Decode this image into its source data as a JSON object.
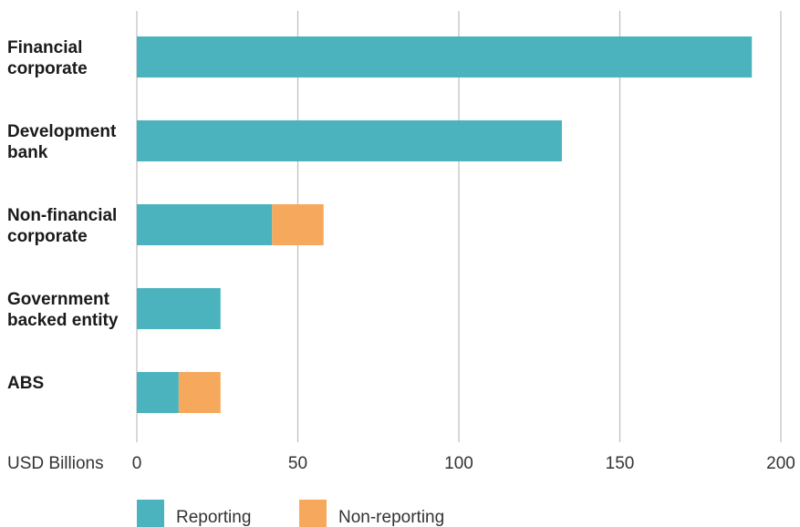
{
  "chart_data": {
    "type": "bar",
    "orientation": "horizontal",
    "stacked": true,
    "categories": [
      [
        "Financial",
        "corporate"
      ],
      [
        "Development",
        "bank"
      ],
      [
        "Non-financial",
        "corporate"
      ],
      [
        "Government",
        "backed entity"
      ],
      [
        "ABS"
      ]
    ],
    "series": [
      {
        "name": "Reporting",
        "color": "#4bb3bd",
        "values": [
          191,
          132,
          42,
          26,
          13
        ]
      },
      {
        "name": "Non-reporting",
        "color": "#f6a95c",
        "values": [
          0,
          0,
          16,
          0,
          13
        ]
      }
    ],
    "xlabel": "USD Billions",
    "xlim": [
      0,
      200
    ],
    "xticks": [
      "0",
      "50",
      "100",
      "150",
      "200"
    ],
    "grid": true,
    "legend_position": "bottom"
  }
}
